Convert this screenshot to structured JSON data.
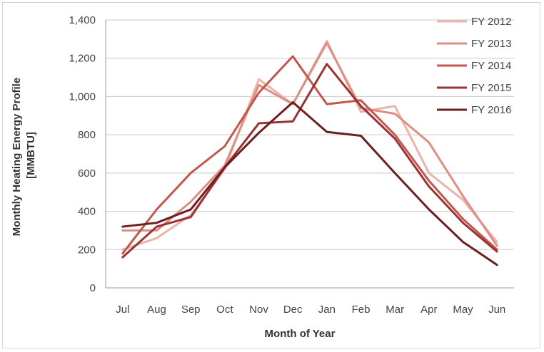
{
  "chart_data": {
    "type": "line",
    "title": "",
    "xlabel": "Month of Year",
    "ylabel": "Monthly Heating Energy Profile [MMBTU]",
    "ylabel_lines": [
      "Monthly Heating Energy Profile",
      "[MMBTU]"
    ],
    "categories": [
      "Jul",
      "Aug",
      "Sep",
      "Oct",
      "Nov",
      "Dec",
      "Jan",
      "Feb",
      "Mar",
      "Apr",
      "May",
      "Jun"
    ],
    "ylim": [
      0,
      1400
    ],
    "yticks": [
      0,
      200,
      400,
      600,
      800,
      1000,
      1200,
      1400
    ],
    "ytick_labels": [
      "0",
      "200",
      "400",
      "600",
      "800",
      "1,000",
      "1,200",
      "1,400"
    ],
    "grid": true,
    "legend_position": "top-right",
    "series": [
      {
        "name": "FY 2012",
        "color": "#eab4aa",
        "values": [
          200,
          260,
          380,
          620,
          1090,
          960,
          1290,
          920,
          950,
          600,
          460,
          240
        ]
      },
      {
        "name": "FY 2013",
        "color": "#de8e82",
        "values": [
          300,
          300,
          450,
          640,
          1060,
          960,
          1280,
          940,
          910,
          760,
          480,
          220
        ]
      },
      {
        "name": "FY 2014",
        "color": "#c2574d",
        "values": [
          180,
          410,
          600,
          740,
          1020,
          1210,
          960,
          980,
          800,
          560,
          360,
          200
        ]
      },
      {
        "name": "FY 2015",
        "color": "#9b3233",
        "values": [
          160,
          320,
          370,
          630,
          860,
          870,
          1170,
          950,
          780,
          530,
          340,
          190
        ]
      },
      {
        "name": "FY 2016",
        "color": "#6b1f22",
        "values": [
          320,
          340,
          410,
          630,
          810,
          970,
          815,
          795,
          600,
          410,
          240,
          120
        ]
      }
    ]
  }
}
